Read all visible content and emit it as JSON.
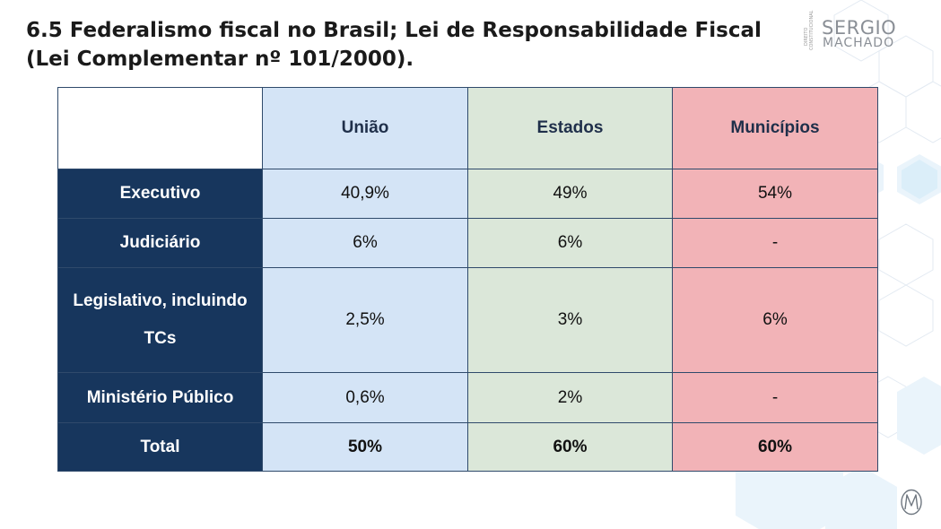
{
  "title": "6.5 Federalismo fiscal no Brasil; Lei de Responsabilidade Fiscal (Lei Complementar nº 101/2000).",
  "logo": {
    "line1": "SERGIO",
    "line2": "MACHADO",
    "side_text": "DIREITO CONSTITUCIONAL"
  },
  "table": {
    "headers": [
      "União",
      "Estados",
      "Municípios"
    ],
    "rows": [
      {
        "label": "Executivo",
        "values": [
          "40,9%",
          "49%",
          "54%"
        ]
      },
      {
        "label": "Judiciário",
        "values": [
          "6%",
          "6%",
          "-"
        ]
      },
      {
        "label": "Legislativo, incluindo TCs",
        "values": [
          "2,5%",
          "3%",
          "6%"
        ]
      },
      {
        "label": "Ministério Público",
        "values": [
          "0,6%",
          "2%",
          "-"
        ]
      },
      {
        "label": "Total",
        "values": [
          "50%",
          "60%",
          "60%"
        ]
      }
    ]
  },
  "colors": {
    "row_label_bg": "#17365d",
    "uniao_bg": "#d4e4f6",
    "estados_bg": "#dbe7d9",
    "municipios_bg": "#f2b3b7"
  },
  "corner_logo_icon": "m-monogram-icon"
}
